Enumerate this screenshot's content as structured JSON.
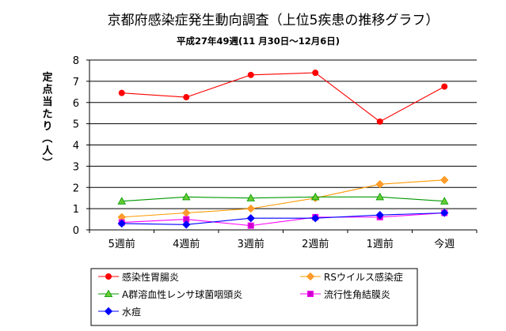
{
  "chart_data": {
    "type": "line",
    "title": "京都府感染症発生動向調査（上位5疾患の推移グラフ）",
    "subtitle": "平成27年49週(11 月30日～12月6日)",
    "ylabel": "定点当たり（人）",
    "xlabel": "",
    "categories": [
      "5週前",
      "4週前",
      "3週前",
      "2週前",
      "1週前",
      "今週"
    ],
    "ylim": [
      0,
      8
    ],
    "yticks": [
      "0",
      "1",
      "2",
      "3",
      "4",
      "5",
      "6",
      "7",
      "8"
    ],
    "grid": true,
    "legend_position": "bottom",
    "series": [
      {
        "name": "感染性胃腸炎",
        "color": "#ff0000",
        "marker": "circle",
        "markerFill": "#ff0000",
        "values": [
          6.45,
          6.25,
          7.3,
          7.4,
          5.1,
          6.75
        ]
      },
      {
        "name": "RSウイルス感染症",
        "color": "#ff9900",
        "marker": "diamond",
        "markerFill": "#ff9933",
        "values": [
          0.6,
          0.8,
          1.0,
          1.5,
          2.15,
          2.35
        ]
      },
      {
        "name": "A群溶血性レンサ球菌咽頭炎",
        "color": "#009900",
        "marker": "triangle",
        "markerFill": "#66cc33",
        "values": [
          1.35,
          1.55,
          1.5,
          1.55,
          1.55,
          1.35
        ]
      },
      {
        "name": "流行性角結膜炎",
        "color": "#ff00ff",
        "marker": "square",
        "markerFill": "#cc00cc",
        "values": [
          0.35,
          0.5,
          0.2,
          0.6,
          0.6,
          0.8
        ]
      },
      {
        "name": "水痘",
        "color": "#0000ff",
        "marker": "diamond",
        "markerFill": "#0000ff",
        "values": [
          0.3,
          0.25,
          0.55,
          0.55,
          0.7,
          0.8
        ]
      }
    ]
  }
}
